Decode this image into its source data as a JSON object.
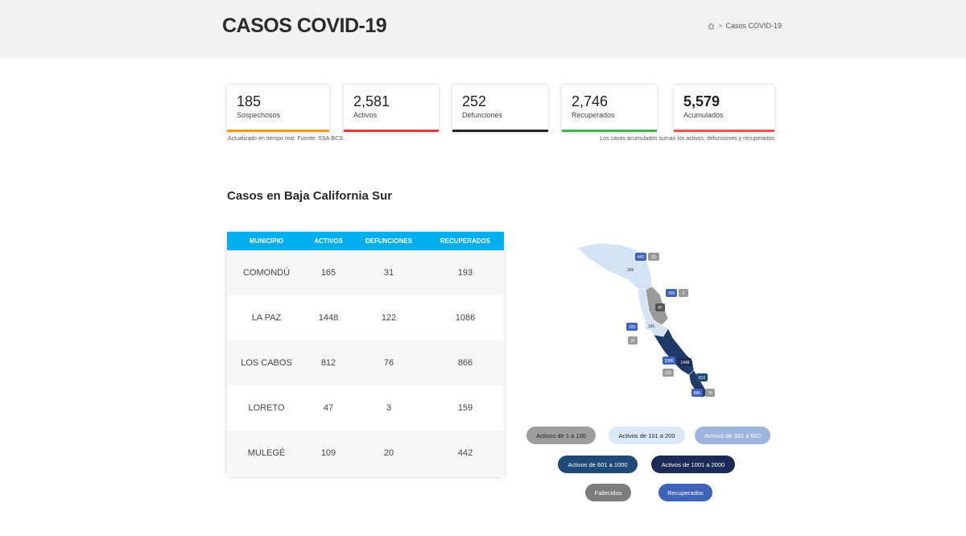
{
  "header": {
    "title": "CASOS COVID-19",
    "breadcrumb": {
      "current": "Casos COVID-19",
      "separator": ">"
    }
  },
  "stats": [
    {
      "value": "185",
      "label": "Sospechosos",
      "color": "#f39c12"
    },
    {
      "value": "2,581",
      "label": "Activos",
      "color": "#e53935"
    },
    {
      "value": "252",
      "label": "Defunciones",
      "color": "#222222"
    },
    {
      "value": "2,746",
      "label": "Recuperados",
      "color": "#43b649"
    },
    {
      "value": "5,579",
      "label": "Acumulados",
      "color": "#ef5350"
    }
  ],
  "notes": {
    "left": "Actualizado en tiempo real. Fuente: SSA-BCS.",
    "right": "Los casos acumulados suman los activos, defunciones y recuperados."
  },
  "section_title": "Casos en Baja California Sur",
  "table": {
    "headers": [
      "MUNICIPIO",
      "ACTIVOS",
      "DEFUNCIONES",
      "RECUPERADOS"
    ],
    "rows": [
      [
        "COMONDÚ",
        "165",
        "31",
        "193"
      ],
      [
        "LA PAZ",
        "1448",
        "122",
        "1086"
      ],
      [
        "LOS CABOS",
        "812",
        "76",
        "866"
      ],
      [
        "LORETO",
        "47",
        "3",
        "159"
      ],
      [
        "MULEGÉ",
        "109",
        "20",
        "442"
      ]
    ]
  },
  "map_labels": {
    "mulege_recuperados": "442",
    "mulege_defunciones": "20",
    "mulege_activos": "109",
    "loreto_recuperados": "159",
    "loreto_defunciones": "3",
    "loreto_activos": "47",
    "comondu_recuperados": "193",
    "comondu_activos": "165",
    "comondu_defunciones": "31",
    "lapaz_recuperados": "1086",
    "lapaz_activos": "1448",
    "lapaz_defunciones": "122",
    "loscabos_activos": "812",
    "loscabos_recuperados": "866",
    "loscabos_defunciones": "76"
  },
  "legend": [
    {
      "label": "Activos de 1 a 100",
      "bg": "#9e9e9e",
      "fg": "#222222"
    },
    {
      "label": "Activos de 101 a 200",
      "bg": "#dbe8f7",
      "fg": "#222222"
    },
    {
      "label": "Activos de 301 a 600",
      "bg": "#9db4dc",
      "fg": "#ffffff"
    },
    {
      "label": "Activos de 601 a 1000",
      "bg": "#1f4a78",
      "fg": "#ffffff"
    },
    {
      "label": "Activos de 1001 a 2000",
      "bg": "#1c2b55",
      "fg": "#ffffff"
    },
    {
      "label": "Fallecidos",
      "bg": "#7d7d7d",
      "fg": "#ffffff"
    },
    {
      "label": "Recuperados",
      "bg": "#3f63b8",
      "fg": "#ffffff"
    }
  ],
  "colors": {
    "header_bg": "#f2f2f2",
    "table_header": "#00adef",
    "map_light": "#d4e4f5",
    "map_gray": "#9a9a9a",
    "map_dark": "#1f3a66"
  }
}
